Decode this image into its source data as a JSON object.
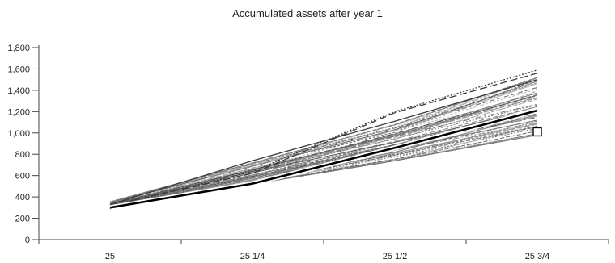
{
  "chart_data": {
    "type": "line",
    "title": "Accumulated assets after year 1",
    "xlabel": "",
    "ylabel": "",
    "categories": [
      "25",
      "25 1/4",
      "25 1/2",
      "25 3/4"
    ],
    "ylim": [
      0,
      1800
    ],
    "yticks": [
      0,
      200,
      400,
      600,
      800,
      1000,
      1200,
      1400,
      1600,
      1800
    ],
    "ytick_labels": [
      "0",
      "200",
      "400",
      "600",
      "800",
      "1,000",
      "1,200",
      "1,400",
      "1,600",
      "1,800"
    ],
    "grid": false,
    "legend": "none",
    "highlight_series": {
      "values": [
        300,
        525,
        860,
        1210
      ],
      "color": "#000000",
      "style": "solid-bold"
    },
    "outlier_series": [
      {
        "values": [
          320,
          620,
          1190,
          1560
        ],
        "style": "long-dash"
      },
      {
        "values": [
          310,
          640,
          1200,
          1590
        ],
        "style": "dotted"
      },
      {
        "values": [
          330,
          740,
          1110,
          1500
        ],
        "style": "solid"
      }
    ],
    "simulated_series_count": 60,
    "band": {
      "low": [
        285,
        520,
        740,
        980
      ],
      "high": [
        355,
        720,
        1080,
        1520
      ]
    },
    "marker": {
      "category": "25 3/4",
      "value": 1010,
      "shape": "square"
    },
    "colors": {
      "highlight": "#000000",
      "simulations": "#777777",
      "axis": "#444444"
    }
  }
}
